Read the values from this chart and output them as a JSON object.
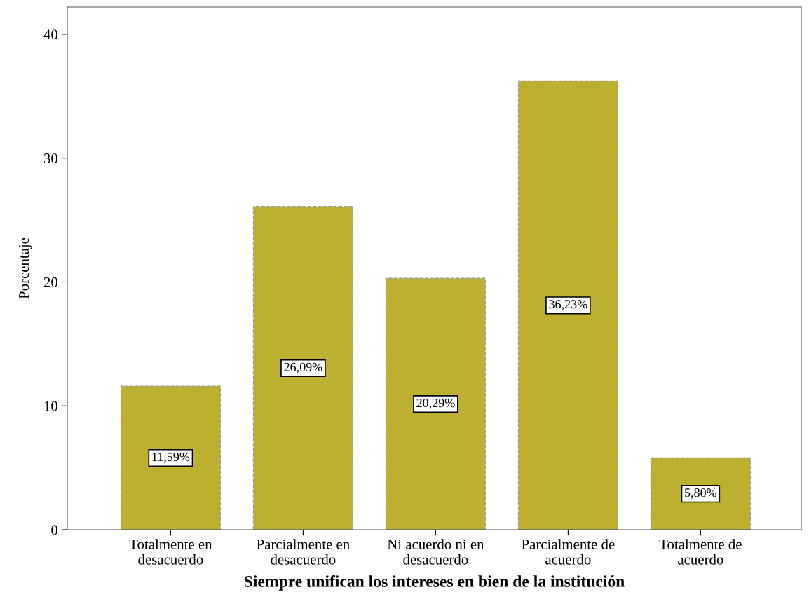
{
  "chart_data": {
    "type": "bar",
    "xlabel": "Siempre unifican los intereses en bien de la institución",
    "ylabel": "Porcentaje",
    "categories": [
      "Totalmente en\ndesacuerdo",
      "Parcialmente en\ndesacuerdo",
      "Ni acuerdo ni en\ndesacuerdo",
      "Parcialmente de\nacuerdo",
      "Totalmente de\nacuerdo"
    ],
    "values": [
      11.59,
      26.09,
      20.29,
      36.23,
      5.8
    ],
    "value_labels": [
      "11,59%",
      "26,09%",
      "20,29%",
      "36,23%",
      "5,80%"
    ],
    "color": "#bdb030",
    "ylim": [
      0,
      42.2
    ],
    "yticks": [
      0,
      10,
      20,
      30,
      40
    ],
    "grid": false,
    "legend": false
  }
}
